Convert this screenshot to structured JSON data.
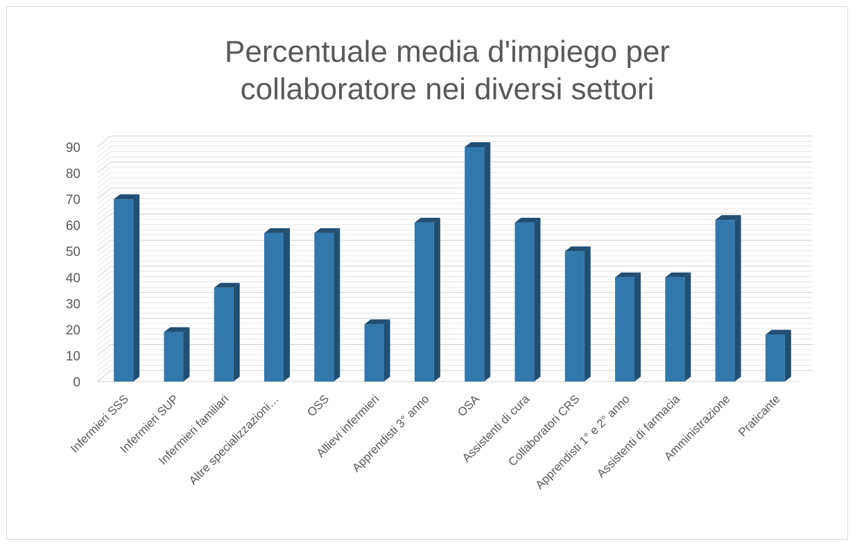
{
  "chart_data": {
    "type": "bar",
    "title_lines": [
      "Percentuale media d'impiego per",
      "collaboratore nei diversi settori"
    ],
    "categories": [
      "Infermieri SSS",
      "Infermieri SUP",
      "Infermieri familiari",
      "Altre specializzazioni…",
      "OSS",
      "Allievi infermieri",
      "Apprendisti 3° anno",
      "OSA",
      "Assistenti di cura",
      "Collaboratori CRS",
      "Apprendisti 1° e 2° anno",
      "Assistenti di farmacia",
      "Amministrazione",
      "Praticante"
    ],
    "values": [
      70,
      19,
      36,
      57,
      57,
      22,
      61,
      90,
      61,
      50,
      40,
      40,
      62,
      18
    ],
    "ylim": [
      0,
      90
    ],
    "yticks": [
      0,
      10,
      20,
      30,
      40,
      50,
      60,
      70,
      80,
      90
    ],
    "grid": true,
    "bar_color": "#3278ad",
    "bar_side_color": "#214f73",
    "bar_top_color": "#3f87bd"
  }
}
